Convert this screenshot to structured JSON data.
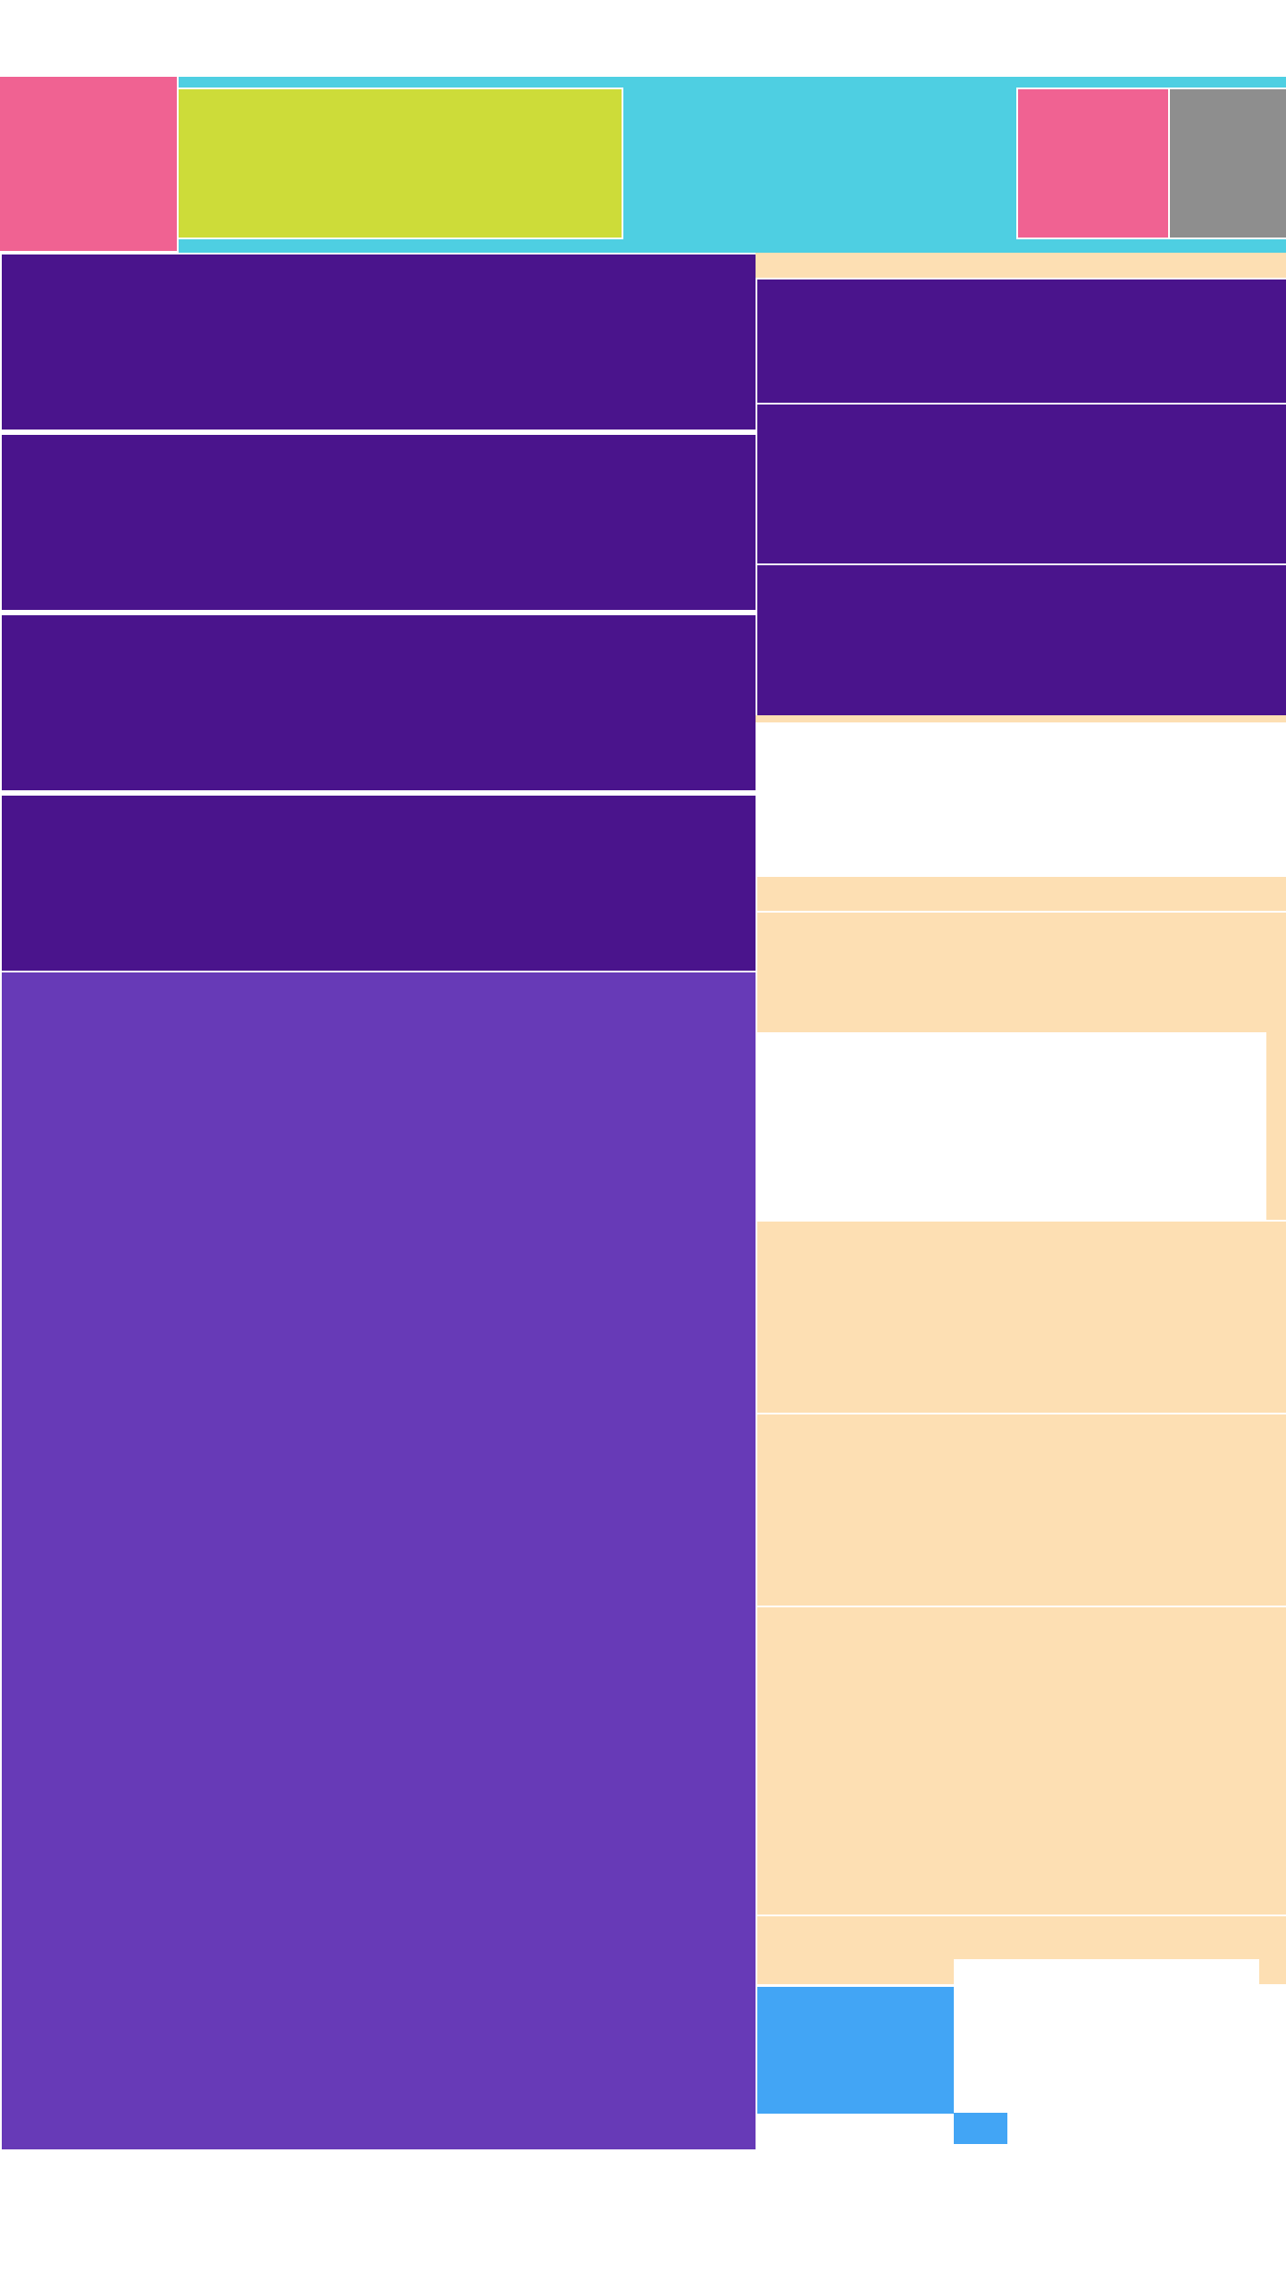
{
  "colors": {
    "background": "#ffffff",
    "header_bar": "#4ECFE2",
    "logo_block": "#F06292",
    "header_search_block": "#CDDC39",
    "header_action_primary": "#F06292",
    "header_action_secondary": "#8E8E8E",
    "nav_card": "#4A148C",
    "main_content": "#673AB7",
    "sidebar_panel": "#FDDFB3",
    "sidebar_card": "#4A148C",
    "footer_button": "#42A5F5",
    "divider": "#ffffff"
  },
  "header": {
    "logo": {
      "icon": "logo-placeholder"
    },
    "search": {
      "icon": "search-field-placeholder"
    },
    "actions": [
      {
        "icon": "action-primary-placeholder"
      },
      {
        "icon": "action-secondary-placeholder"
      }
    ]
  },
  "nav_cards": [
    {
      "icon": "card-placeholder"
    },
    {
      "icon": "card-placeholder"
    },
    {
      "icon": "card-placeholder"
    },
    {
      "icon": "card-placeholder"
    }
  ],
  "sidebar": {
    "cards": [
      {
        "icon": "card-placeholder"
      },
      {
        "icon": "card-placeholder"
      },
      {
        "icon": "card-placeholder"
      }
    ],
    "sections": [
      {
        "icon": "section-placeholder"
      },
      {
        "icon": "section-placeholder"
      },
      {
        "icon": "section-placeholder"
      },
      {
        "icon": "section-placeholder"
      },
      {
        "icon": "section-placeholder"
      },
      {
        "icon": "section-placeholder"
      }
    ]
  },
  "footer": {
    "button": {
      "icon": "button-placeholder"
    }
  }
}
